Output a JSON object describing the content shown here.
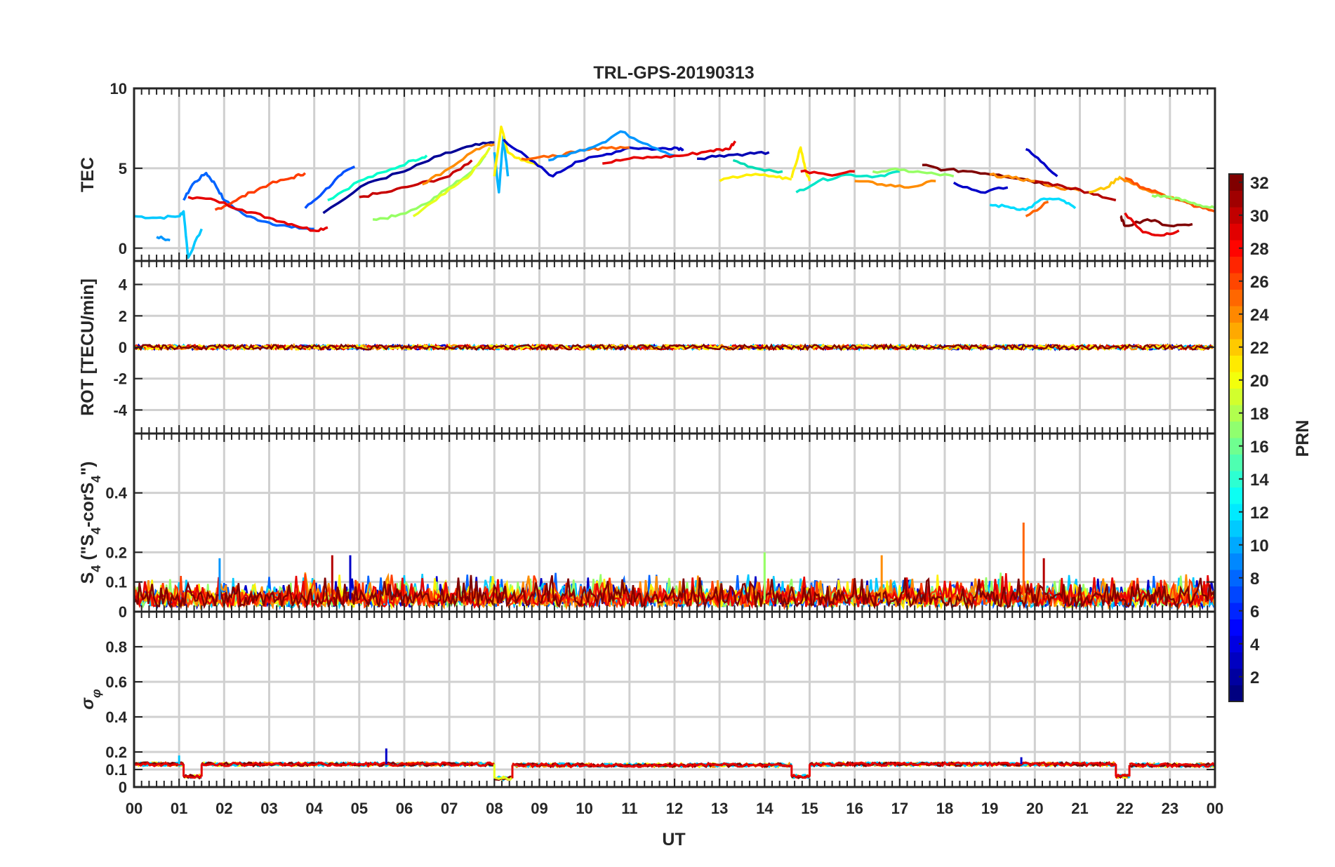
{
  "figure": {
    "title": "TRL-GPS-20190313",
    "xlabel": "UT",
    "x_tick_labels": [
      "00",
      "01",
      "02",
      "03",
      "04",
      "05",
      "06",
      "07",
      "08",
      "09",
      "10",
      "11",
      "12",
      "13",
      "14",
      "15",
      "16",
      "17",
      "18",
      "19",
      "20",
      "21",
      "22",
      "23",
      "00"
    ]
  },
  "colorbar": {
    "label": "PRN",
    "tick_labels": [
      "2",
      "4",
      "6",
      "8",
      "10",
      "12",
      "14",
      "16",
      "18",
      "20",
      "22",
      "24",
      "26",
      "28",
      "30",
      "32"
    ],
    "range": [
      1,
      32
    ],
    "colormap": "jet"
  },
  "chart_data": [
    {
      "type": "line",
      "panel": "TEC",
      "ylabel": "TEC",
      "ylim": [
        -0.8,
        10
      ],
      "y_ticks": [
        0,
        5,
        10
      ],
      "y_tick_labels": [
        "0",
        "5",
        "10"
      ],
      "grid": true,
      "series": [
        {
          "color": "#00c8ff",
          "x": [
            0,
            0.5,
            1.0,
            1.1,
            1.2,
            1.5
          ],
          "y": [
            2.0,
            1.9,
            2.0,
            2.3,
            -0.6,
            1.2
          ]
        },
        {
          "color": "#0064ff",
          "x": [
            1.1,
            1.3,
            1.6,
            1.8,
            2.0,
            2.5,
            3.0,
            3.5,
            4.0
          ],
          "y": [
            3.0,
            4.0,
            4.7,
            4.0,
            3.0,
            2.0,
            1.6,
            1.3,
            1.2
          ]
        },
        {
          "color": "#0050ff",
          "x": [
            3.8,
            4.2,
            4.6,
            4.9
          ],
          "y": [
            2.5,
            3.5,
            4.6,
            5.1
          ]
        },
        {
          "color": "#ff3c00",
          "x": [
            1.8,
            2.2,
            2.6,
            3.0,
            3.5,
            3.8
          ],
          "y": [
            2.4,
            2.9,
            3.5,
            4.0,
            4.4,
            4.7
          ]
        },
        {
          "color": "#e60000",
          "x": [
            1.2,
            1.8,
            2.4,
            3.0,
            3.5,
            4.0,
            4.3
          ],
          "y": [
            3.2,
            3.0,
            2.4,
            1.9,
            1.5,
            1.1,
            1.3
          ]
        },
        {
          "color": "#00ffcc",
          "x": [
            4.3,
            5.0,
            5.6,
            6.2,
            6.5
          ],
          "y": [
            3.0,
            4.2,
            4.8,
            5.5,
            5.8
          ]
        },
        {
          "color": "#000096",
          "x": [
            4.2,
            5.2,
            6.0,
            6.8,
            7.5,
            8.0
          ],
          "y": [
            2.2,
            4.1,
            4.8,
            5.8,
            6.4,
            6.6
          ]
        },
        {
          "color": "#c80000",
          "x": [
            5.0,
            5.6,
            6.3,
            7.0,
            7.5
          ],
          "y": [
            3.2,
            3.5,
            4.0,
            4.5,
            5.5
          ]
        },
        {
          "color": "#96ff64",
          "x": [
            5.3,
            5.8,
            6.5,
            7.0,
            7.5,
            7.8
          ],
          "y": [
            1.8,
            2.0,
            2.8,
            3.8,
            4.8,
            5.8
          ]
        },
        {
          "color": "#e6ff1e",
          "x": [
            6.2,
            6.8,
            7.4,
            7.9
          ],
          "y": [
            2.0,
            3.3,
            4.4,
            6.3
          ]
        },
        {
          "color": "#ff8c00",
          "x": [
            6.4,
            7.0,
            7.6,
            8.0
          ],
          "y": [
            4.0,
            5.0,
            6.2,
            6.5
          ]
        },
        {
          "color": "#00b4ff",
          "x": [
            8.0,
            8.1,
            8.2,
            8.3
          ],
          "y": [
            6.0,
            3.5,
            7.0,
            4.5
          ]
        },
        {
          "color": "#fff000",
          "x": [
            8.0,
            8.15,
            8.3,
            8.6,
            9.0
          ],
          "y": [
            4.5,
            7.6,
            6.0,
            5.5,
            5.2
          ]
        },
        {
          "color": "#0000c8",
          "x": [
            8.2,
            8.8,
            9.3,
            9.8,
            10.4,
            11.0,
            11.6,
            12.0,
            12.2
          ],
          "y": [
            6.8,
            5.5,
            4.5,
            5.4,
            5.8,
            6.3,
            6.2,
            6.3,
            6.2
          ]
        },
        {
          "color": "#ff6400",
          "x": [
            8.6,
            9.2,
            9.8,
            10.4,
            11.0
          ],
          "y": [
            5.6,
            5.7,
            6.0,
            6.3,
            6.3
          ]
        },
        {
          "color": "#0096ff",
          "x": [
            9.2,
            9.8,
            10.4,
            10.8,
            11.4,
            12.0
          ],
          "y": [
            5.5,
            6.0,
            6.6,
            7.3,
            6.5,
            5.8
          ]
        },
        {
          "color": "#e60000",
          "x": [
            10.4,
            11.0,
            11.6,
            12.2,
            12.8,
            13.2,
            13.35
          ],
          "y": [
            5.3,
            5.6,
            5.7,
            5.8,
            6.1,
            6.2,
            6.7
          ]
        },
        {
          "color": "#0000b4",
          "x": [
            12.5,
            13.0,
            13.6,
            14.1
          ],
          "y": [
            5.6,
            5.8,
            5.9,
            6.0
          ]
        },
        {
          "color": "#fff000",
          "x": [
            13.0,
            13.6,
            14.2,
            14.6
          ],
          "y": [
            4.2,
            4.6,
            4.5,
            4.3
          ]
        },
        {
          "color": "#00dcb4",
          "x": [
            13.3,
            13.8,
            14.4
          ],
          "y": [
            5.5,
            5.0,
            4.8
          ]
        },
        {
          "color": "#fff000",
          "x": [
            14.6,
            14.8,
            14.9,
            15.0
          ],
          "y": [
            4.4,
            6.3,
            5.0,
            4.2
          ]
        },
        {
          "color": "#00e6c8",
          "x": [
            14.7,
            15.2,
            15.8,
            16.5,
            17.0
          ],
          "y": [
            3.5,
            4.2,
            4.6,
            4.5,
            4.8
          ]
        },
        {
          "color": "#e60000",
          "x": [
            14.8,
            15.4,
            16.0
          ],
          "y": [
            4.8,
            4.6,
            4.8
          ]
        },
        {
          "color": "#ff8c00",
          "x": [
            16.0,
            16.6,
            17.2,
            17.8
          ],
          "y": [
            4.2,
            4.0,
            3.8,
            4.2
          ]
        },
        {
          "color": "#96ff64",
          "x": [
            16.4,
            17.0,
            17.6,
            18.2
          ],
          "y": [
            4.8,
            4.9,
            4.7,
            4.5
          ]
        },
        {
          "color": "#800000",
          "x": [
            17.5,
            18.0,
            18.6,
            19.2,
            19.8,
            20.4
          ],
          "y": [
            5.2,
            4.9,
            4.8,
            4.6,
            4.3,
            3.9
          ]
        },
        {
          "color": "#0000c8",
          "x": [
            18.2,
            18.8,
            19.4
          ],
          "y": [
            4.1,
            3.5,
            3.8
          ]
        },
        {
          "color": "#00dcff",
          "x": [
            19.0,
            19.4,
            19.8,
            20.2,
            20.6,
            20.9
          ],
          "y": [
            2.7,
            2.6,
            2.4,
            3.1,
            3.0,
            2.5
          ]
        },
        {
          "color": "#ff8c00",
          "x": [
            19.0,
            19.5,
            20.0,
            20.5,
            21.0
          ],
          "y": [
            4.6,
            4.4,
            4.2,
            3.8,
            3.6
          ]
        },
        {
          "color": "#b40000",
          "x": [
            20.0,
            20.6,
            21.2,
            21.8
          ],
          "y": [
            4.2,
            3.9,
            3.5,
            3.0
          ]
        },
        {
          "color": "#0000c8",
          "x": [
            19.8,
            20.2,
            20.5
          ],
          "y": [
            6.2,
            5.3,
            4.5
          ]
        },
        {
          "color": "#ff6400",
          "x": [
            19.8,
            20.3
          ],
          "y": [
            2.0,
            2.9
          ]
        },
        {
          "color": "#ffc800",
          "x": [
            21.2,
            21.6,
            21.9
          ],
          "y": [
            3.5,
            3.8,
            4.5
          ]
        },
        {
          "color": "#ff8c00",
          "x": [
            21.9,
            22.2,
            22.6,
            23.0,
            23.4
          ],
          "y": [
            4.4,
            4.0,
            3.5,
            3.2,
            2.8
          ]
        },
        {
          "color": "#ff5000",
          "x": [
            22.0,
            22.4,
            22.8,
            23.2,
            23.6,
            24.0
          ],
          "y": [
            4.4,
            3.8,
            3.4,
            3.0,
            2.6,
            2.3
          ]
        },
        {
          "color": "#96ff64",
          "x": [
            22.6,
            23.0,
            23.4,
            23.8,
            24.0
          ],
          "y": [
            3.3,
            3.2,
            2.9,
            2.6,
            2.5
          ]
        },
        {
          "color": "#800000",
          "x": [
            21.9,
            22.0,
            22.5,
            23.0,
            23.5
          ],
          "y": [
            2.0,
            1.4,
            1.8,
            1.4,
            1.5
          ]
        },
        {
          "color": "#e60000",
          "x": [
            22.0,
            22.4,
            22.8,
            23.2
          ],
          "y": [
            2.2,
            1.0,
            0.8,
            1.1
          ]
        },
        {
          "color": "#0096ff",
          "x": [
            0.5,
            0.8
          ],
          "y": [
            0.7,
            0.5
          ]
        }
      ]
    },
    {
      "type": "line",
      "panel": "ROT",
      "ylabel": "ROT [TECU/min]",
      "ylim": [
        -5.5,
        5.5
      ],
      "y_ticks": [
        -4,
        -2,
        0,
        2,
        4
      ],
      "y_tick_labels": [
        "-4",
        "-2",
        "0",
        "2",
        "4"
      ],
      "grid": true,
      "x_start": 0,
      "x_end": 24,
      "amplitude": 0.15,
      "series_colors": [
        "#0000c8",
        "#00c8ff",
        "#ff8c00",
        "#e60000",
        "#fff000",
        "#800000"
      ]
    },
    {
      "type": "line",
      "panel": "S4",
      "ylabel": "S4 (\"S4-corS4\")",
      "ylim": [
        0,
        0.6
      ],
      "y_ticks": [
        0,
        0.1,
        0.2,
        0.4
      ],
      "y_tick_labels": [
        "0",
        "0.1",
        "0.2",
        "0.4"
      ],
      "grid": true,
      "baseline": 0.04,
      "spread": 0.07,
      "spikes": [
        {
          "x": 4.8,
          "y": 0.19,
          "color": "#0000c8"
        },
        {
          "x": 4.4,
          "y": 0.19,
          "color": "#b40000"
        },
        {
          "x": 14.0,
          "y": 0.2,
          "color": "#96ff64"
        },
        {
          "x": 16.6,
          "y": 0.19,
          "color": "#ff8c00"
        },
        {
          "x": 19.75,
          "y": 0.3,
          "color": "#ff6400"
        },
        {
          "x": 20.2,
          "y": 0.18,
          "color": "#b40000"
        },
        {
          "x": 1.9,
          "y": 0.18,
          "color": "#0096ff"
        }
      ],
      "series_colors": [
        "#0000c8",
        "#0064ff",
        "#00c8ff",
        "#96ff64",
        "#fff000",
        "#ff8c00",
        "#ff3c00",
        "#e60000",
        "#800000"
      ]
    },
    {
      "type": "line",
      "panel": "sigma_phi",
      "ylabel": "σφ",
      "ylim": [
        0,
        1
      ],
      "y_ticks": [
        0,
        0.1,
        0.2,
        0.4,
        0.6,
        0.8
      ],
      "y_tick_labels": [
        "0",
        "0.1",
        "0.2",
        "0.4",
        "0.6",
        "0.8"
      ],
      "grid": true,
      "segments": [
        {
          "x": [
            0,
            1.1
          ],
          "level": 0.13,
          "color": "#e60000"
        },
        {
          "x": [
            1.1,
            1.5
          ],
          "level": 0.06,
          "color": "#e60000"
        },
        {
          "x": [
            1.5,
            8.0
          ],
          "level": 0.13,
          "color": "#e60000"
        },
        {
          "x": [
            8.0,
            8.4
          ],
          "level": 0.05,
          "color": "#e6ff1e"
        },
        {
          "x": [
            8.4,
            14.6
          ],
          "level": 0.125,
          "color": "#e60000"
        },
        {
          "x": [
            14.6,
            15.0
          ],
          "level": 0.06,
          "color": "#e60000"
        },
        {
          "x": [
            15.0,
            21.8
          ],
          "level": 0.13,
          "color": "#e60000"
        },
        {
          "x": [
            21.8,
            22.1
          ],
          "level": 0.06,
          "color": "#e60000"
        },
        {
          "x": [
            22.1,
            24.0
          ],
          "level": 0.125,
          "color": "#e60000"
        }
      ],
      "overlay_colors": [
        "#ff8c00",
        "#fff000",
        "#00c8ff",
        "#800000"
      ],
      "spikes": [
        {
          "x": 5.6,
          "y": 0.22,
          "color": "#0000c8"
        },
        {
          "x": 1.0,
          "y": 0.18,
          "color": "#00c8ff"
        },
        {
          "x": 19.7,
          "y": 0.17,
          "color": "#0000c8"
        }
      ]
    }
  ]
}
